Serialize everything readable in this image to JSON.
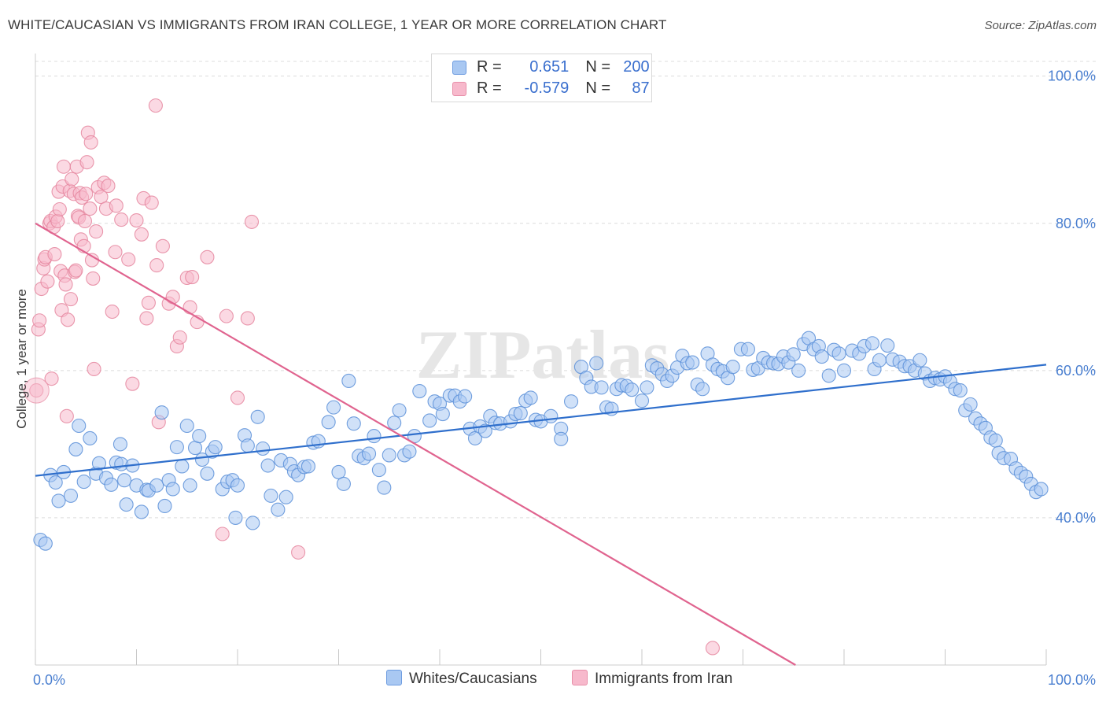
{
  "header": {
    "title": "WHITE/CAUCASIAN VS IMMIGRANTS FROM IRAN COLLEGE, 1 YEAR OR MORE CORRELATION CHART",
    "source": "Source: ZipAtlas.com"
  },
  "legend_top": {
    "rows": [
      {
        "r_label": "R =",
        "r_value": "0.651",
        "n_label": "N =",
        "n_value": "200"
      },
      {
        "r_label": "R =",
        "r_value": "-0.579",
        "n_label": "N =",
        "n_value": "87"
      }
    ]
  },
  "legend_bottom": {
    "items": [
      {
        "label": "Whites/Caucasians"
      },
      {
        "label": "Immigrants from Iran"
      }
    ]
  },
  "watermark": "ZIPatlas",
  "colors": {
    "blue_fill": "#a9c8f2",
    "blue_stroke": "#5b8fd8",
    "blue_line": "#2f6fcc",
    "pink_fill": "#f7b9cc",
    "pink_stroke": "#e5869f",
    "pink_line": "#e0648f",
    "tick_text": "#4a7fd0",
    "grid": "#dcdcdc"
  },
  "chart_data": {
    "type": "scatter",
    "title": "WHITE/CAUCASIAN VS IMMIGRANTS FROM IRAN COLLEGE, 1 YEAR OR MORE CORRELATION CHART",
    "xlabel": "",
    "ylabel": "College, 1 year or more",
    "xlim": [
      0,
      100
    ],
    "ylim": [
      20,
      102
    ],
    "x_tick_labels": [
      "0.0%",
      "100.0%"
    ],
    "y_tick_labels": [
      "40.0%",
      "60.0%",
      "80.0%",
      "100.0%"
    ],
    "y_ticks": [
      40,
      60,
      80,
      100
    ],
    "grid": true,
    "legend_position": "top-center",
    "series": [
      {
        "name": "Whites/Caucasians",
        "color": "#a9c8f2",
        "points": [
          [
            0.5,
            37
          ],
          [
            1,
            36.5
          ],
          [
            1.5,
            45.8
          ],
          [
            2,
            44.8
          ],
          [
            2.3,
            42.3
          ],
          [
            2.8,
            46.2
          ],
          [
            3.5,
            43
          ],
          [
            4,
            49.3
          ],
          [
            4.3,
            52.5
          ],
          [
            4.8,
            44.9
          ],
          [
            5.4,
            50.8
          ],
          [
            6,
            46
          ],
          [
            6.3,
            47.4
          ],
          [
            7,
            45.4
          ],
          [
            7.5,
            44.5
          ],
          [
            8,
            47.5
          ],
          [
            8.5,
            47.3
          ],
          [
            8.4,
            50
          ],
          [
            8.8,
            45.1
          ],
          [
            9,
            41.8
          ],
          [
            9.6,
            47.1
          ],
          [
            10,
            44.4
          ],
          [
            10.5,
            40.8
          ],
          [
            11,
            43.8
          ],
          [
            11.2,
            43.7
          ],
          [
            12,
            44.4
          ],
          [
            12.5,
            54.3
          ],
          [
            12.8,
            41.6
          ],
          [
            13.2,
            45.1
          ],
          [
            13.6,
            43.9
          ],
          [
            14,
            49.6
          ],
          [
            14.5,
            47
          ],
          [
            15,
            52.5
          ],
          [
            15.3,
            44.4
          ],
          [
            15.8,
            49.5
          ],
          [
            16.2,
            51.1
          ],
          [
            16.5,
            47.9
          ],
          [
            17,
            46
          ],
          [
            17.5,
            49
          ],
          [
            17.8,
            49.6
          ],
          [
            18.5,
            43.9
          ],
          [
            19,
            44.9
          ],
          [
            19.5,
            45.1
          ],
          [
            19.8,
            40
          ],
          [
            20,
            44.4
          ],
          [
            20.7,
            51.2
          ],
          [
            21,
            49.8
          ],
          [
            21.5,
            39.3
          ],
          [
            22,
            53.7
          ],
          [
            22.5,
            49.4
          ],
          [
            23,
            47.1
          ],
          [
            23.3,
            43
          ],
          [
            24,
            41.1
          ],
          [
            24.3,
            47.8
          ],
          [
            24.8,
            42.8
          ],
          [
            25.2,
            47.3
          ],
          [
            25.6,
            46.3
          ],
          [
            26,
            45.8
          ],
          [
            26.6,
            46.9
          ],
          [
            27,
            47
          ],
          [
            27.5,
            50.2
          ],
          [
            28,
            50.4
          ],
          [
            29,
            53
          ],
          [
            29.5,
            55
          ],
          [
            30,
            46.2
          ],
          [
            30.5,
            44.6
          ],
          [
            31,
            58.6
          ],
          [
            31.5,
            52.8
          ],
          [
            32,
            48.4
          ],
          [
            32.5,
            48.1
          ],
          [
            33,
            48.7
          ],
          [
            33.5,
            51.1
          ],
          [
            34,
            46.5
          ],
          [
            34.5,
            44.1
          ],
          [
            35,
            48.5
          ],
          [
            35.5,
            52.9
          ],
          [
            36,
            54.6
          ],
          [
            36.5,
            48.5
          ],
          [
            37,
            49
          ],
          [
            37.5,
            51.1
          ],
          [
            38,
            57.2
          ],
          [
            39,
            53.2
          ],
          [
            39.5,
            55.8
          ],
          [
            40,
            55.5
          ],
          [
            40.3,
            54.1
          ],
          [
            41,
            56.6
          ],
          [
            41.5,
            56.6
          ],
          [
            42,
            55.8
          ],
          [
            42.5,
            56.5
          ],
          [
            43,
            52.1
          ],
          [
            43.5,
            50.8
          ],
          [
            44,
            52.4
          ],
          [
            44.5,
            51.8
          ],
          [
            45,
            53.8
          ],
          [
            45.5,
            52.9
          ],
          [
            46,
            52.8
          ],
          [
            47,
            53.1
          ],
          [
            47.5,
            54.1
          ],
          [
            48,
            54.2
          ],
          [
            48.5,
            55.9
          ],
          [
            49,
            56.3
          ],
          [
            49.5,
            53.3
          ],
          [
            50,
            53.1
          ],
          [
            51,
            53.8
          ],
          [
            52,
            52.1
          ],
          [
            52,
            50.7
          ],
          [
            53,
            55.8
          ],
          [
            54,
            60.5
          ],
          [
            54.5,
            59
          ],
          [
            55,
            57.8
          ],
          [
            55.5,
            61
          ],
          [
            56,
            57.7
          ],
          [
            56.5,
            55
          ],
          [
            57,
            54.8
          ],
          [
            57.5,
            57.5
          ],
          [
            58,
            58
          ],
          [
            58.5,
            57.9
          ],
          [
            59,
            57.4
          ],
          [
            60,
            55.9
          ],
          [
            60.5,
            57.7
          ],
          [
            61,
            60.7
          ],
          [
            61.5,
            60.3
          ],
          [
            62,
            59.5
          ],
          [
            62.5,
            58.6
          ],
          [
            63,
            59.3
          ],
          [
            63.5,
            60.4
          ],
          [
            64,
            62
          ],
          [
            64.5,
            61
          ],
          [
            65,
            61.1
          ],
          [
            65.5,
            58.1
          ],
          [
            66,
            57.5
          ],
          [
            66.5,
            62.3
          ],
          [
            67,
            60.8
          ],
          [
            67.5,
            60.2
          ],
          [
            68,
            59.9
          ],
          [
            68.5,
            59
          ],
          [
            69,
            60.5
          ],
          [
            69.8,
            62.9
          ],
          [
            70.5,
            62.9
          ],
          [
            71,
            60.1
          ],
          [
            71.5,
            60.3
          ],
          [
            72,
            61.7
          ],
          [
            72.5,
            61.1
          ],
          [
            73,
            61
          ],
          [
            73.5,
            60.9
          ],
          [
            74,
            61.9
          ],
          [
            74.5,
            61.1
          ],
          [
            75,
            62.2
          ],
          [
            75.5,
            60
          ],
          [
            76,
            63.6
          ],
          [
            76.5,
            64.4
          ],
          [
            77,
            62.9
          ],
          [
            77.5,
            63.3
          ],
          [
            77.8,
            61.9
          ],
          [
            78.5,
            59.3
          ],
          [
            79,
            62.8
          ],
          [
            79.5,
            62.3
          ],
          [
            80,
            60
          ],
          [
            80.8,
            62.7
          ],
          [
            81.5,
            62.3
          ],
          [
            82,
            63.3
          ],
          [
            82.8,
            63.7
          ],
          [
            83,
            60.2
          ],
          [
            83.5,
            61.4
          ],
          [
            84.3,
            63.4
          ],
          [
            84.8,
            61.5
          ],
          [
            85.5,
            61.2
          ],
          [
            86,
            60.6
          ],
          [
            86.5,
            60.6
          ],
          [
            87,
            60
          ],
          [
            87.5,
            61.4
          ],
          [
            88,
            59.6
          ],
          [
            88.5,
            58.6
          ],
          [
            89,
            59
          ],
          [
            89.5,
            58.8
          ],
          [
            90,
            59.2
          ],
          [
            90.5,
            58.5
          ],
          [
            91,
            57.5
          ],
          [
            91.5,
            57.3
          ],
          [
            92,
            54.6
          ],
          [
            92.5,
            55.4
          ],
          [
            93,
            53.5
          ],
          [
            93.5,
            52.8
          ],
          [
            94,
            52.2
          ],
          [
            94.5,
            50.9
          ],
          [
            95,
            50.5
          ],
          [
            95.3,
            48.8
          ],
          [
            95.8,
            48.1
          ],
          [
            96.5,
            48
          ],
          [
            97,
            46.7
          ],
          [
            97.5,
            46.1
          ],
          [
            98,
            45.6
          ],
          [
            98.5,
            44.6
          ],
          [
            99,
            43.5
          ],
          [
            99.5,
            43.9
          ]
        ]
      },
      {
        "name": "Immigrants from Iran",
        "color": "#f7b9cc",
        "points": [
          [
            0.1,
            57.3
          ],
          [
            0.3,
            65.6
          ],
          [
            0.4,
            66.8
          ],
          [
            0.6,
            71.1
          ],
          [
            0.8,
            73.9
          ],
          [
            0.9,
            75.1
          ],
          [
            1,
            75.4
          ],
          [
            1.2,
            72.1
          ],
          [
            1.4,
            80
          ],
          [
            1.5,
            80.3
          ],
          [
            1.6,
            58.9
          ],
          [
            1.8,
            79.5
          ],
          [
            1.9,
            75.8
          ],
          [
            2,
            80.9
          ],
          [
            2.2,
            80.3
          ],
          [
            2.3,
            84.3
          ],
          [
            2.4,
            81.9
          ],
          [
            2.5,
            73.5
          ],
          [
            2.6,
            68.2
          ],
          [
            2.7,
            85
          ],
          [
            2.8,
            87.7
          ],
          [
            2.9,
            72.9
          ],
          [
            3,
            71.7
          ],
          [
            3.1,
            53.8
          ],
          [
            3.2,
            66.9
          ],
          [
            3.4,
            84.4
          ],
          [
            3.5,
            69.7
          ],
          [
            3.6,
            86
          ],
          [
            3.8,
            84
          ],
          [
            3.9,
            73.4
          ],
          [
            4,
            73.6
          ],
          [
            4.1,
            87.7
          ],
          [
            4.2,
            81
          ],
          [
            4.3,
            80.8
          ],
          [
            4.4,
            84.1
          ],
          [
            4.5,
            77.8
          ],
          [
            4.6,
            83.5
          ],
          [
            4.8,
            76.9
          ],
          [
            4.9,
            80.3
          ],
          [
            5,
            84
          ],
          [
            5.1,
            88.3
          ],
          [
            5.2,
            92.3
          ],
          [
            5.4,
            82
          ],
          [
            5.5,
            91
          ],
          [
            5.6,
            75
          ],
          [
            5.7,
            72.5
          ],
          [
            5.8,
            60.2
          ],
          [
            6,
            78.9
          ],
          [
            6.2,
            84.9
          ],
          [
            6.5,
            83.6
          ],
          [
            6.8,
            85.5
          ],
          [
            7,
            82
          ],
          [
            7.2,
            85.1
          ],
          [
            7.6,
            68
          ],
          [
            7.9,
            76.1
          ],
          [
            8,
            82.4
          ],
          [
            8.5,
            80.5
          ],
          [
            9.2,
            75.1
          ],
          [
            9.6,
            58.2
          ],
          [
            10,
            80.4
          ],
          [
            10.5,
            78.5
          ],
          [
            10.7,
            83.4
          ],
          [
            11,
            67.1
          ],
          [
            11.2,
            69.2
          ],
          [
            11.5,
            82.8
          ],
          [
            11.9,
            96
          ],
          [
            12,
            74.3
          ],
          [
            12.2,
            53
          ],
          [
            12.6,
            76.9
          ],
          [
            13.2,
            69.1
          ],
          [
            13.6,
            70
          ],
          [
            14,
            63.3
          ],
          [
            14.3,
            64.5
          ],
          [
            15,
            72.6
          ],
          [
            15.3,
            68.6
          ],
          [
            15.5,
            72.7
          ],
          [
            16,
            66.6
          ],
          [
            17,
            75.4
          ],
          [
            18.5,
            37.8
          ],
          [
            18.9,
            67.4
          ],
          [
            20,
            56.3
          ],
          [
            21,
            67.1
          ],
          [
            21.4,
            80.2
          ],
          [
            26,
            35.3
          ],
          [
            67,
            22.3
          ]
        ]
      }
    ],
    "trendlines": [
      {
        "name": "Whites/Caucasians",
        "x": [
          0,
          100
        ],
        "y": [
          45.7,
          60.8
        ]
      },
      {
        "name": "Immigrants from Iran",
        "x": [
          0,
          75.2
        ],
        "y": [
          80,
          20
        ]
      }
    ]
  }
}
